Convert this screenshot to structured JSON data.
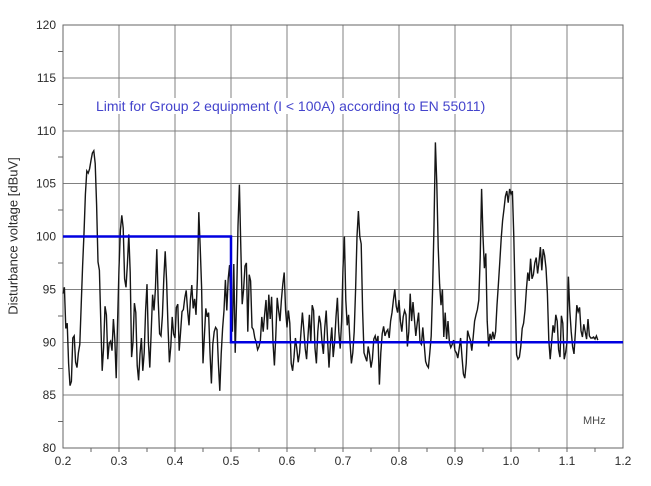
{
  "chart_data": {
    "type": "line",
    "title": "",
    "annotation": "Limit for Group 2 equipment (I < 100A) according to EN 55011)",
    "ylabel": "Disturbance voltage [dBuV]",
    "x_unit_label": "MHz",
    "xlim": [
      0.2,
      1.2
    ],
    "ylim": [
      80,
      120
    ],
    "x_ticks": [
      0.2,
      0.3,
      0.4,
      0.5,
      0.6,
      0.7,
      0.8,
      0.9,
      1.0,
      1.1,
      1.2
    ],
    "x_tick_labels": [
      "0.2",
      "0.3",
      "0.4",
      "0.5",
      "0.6",
      "0.7",
      "0.8",
      "0.9",
      "1.0",
      "1.1",
      "1.2"
    ],
    "y_ticks": [
      80,
      85,
      90,
      95,
      100,
      105,
      110,
      115,
      120
    ],
    "y_tick_labels": [
      "80",
      "85",
      "90",
      "95",
      "100",
      "105",
      "110",
      "115",
      "120"
    ],
    "x_minor_step": 0.05,
    "y_minor_step": 2.5,
    "grid": true,
    "legend_position": "none",
    "colors": {
      "grid": "#808080",
      "frame": "#666666",
      "tick": "#666666",
      "tick_label": "#2b2b2b",
      "trace": "#161616",
      "limit": "#0000e0",
      "annotation": "#4444cc",
      "background": "#ffffff"
    },
    "series": [
      {
        "name": "measured-disturbance-voltage",
        "style": "line",
        "color": "#161616",
        "x_start": 0.2,
        "x_step": 0.0025,
        "values": [
          94.6,
          95.2,
          91.3,
          91.8,
          88.0,
          85.9,
          86.3,
          90.4,
          90.6,
          88.1,
          87.6,
          89.0,
          89.8,
          93.5,
          97.2,
          100.3,
          104.0,
          106.2,
          106.0,
          106.4,
          107.2,
          107.9,
          108.1,
          106.9,
          103.0,
          97.6,
          96.8,
          91.9,
          87.3,
          89.5,
          93.4,
          92.6,
          88.4,
          89.9,
          90.1,
          89.2,
          92.2,
          90.3,
          86.6,
          92.0,
          97.0,
          100.6,
          102.0,
          100.8,
          96.0,
          95.2,
          97.4,
          100.2,
          96.6,
          88.6,
          90.0,
          93.7,
          92.8,
          87.8,
          86.4,
          88.9,
          90.4,
          87.3,
          89.0,
          93.0,
          95.5,
          90.0,
          87.6,
          91.0,
          94.5,
          93.0,
          95.0,
          98.8,
          94.0,
          90.8,
          90.6,
          92.5,
          96.0,
          98.6,
          95.8,
          91.5,
          88.1,
          89.6,
          92.4,
          90.8,
          90.4,
          93.3,
          93.6,
          89.2,
          91.0,
          92.9,
          93.1,
          94.2,
          94.9,
          93.0,
          91.6,
          94.0,
          95.4,
          93.2,
          94.1,
          92.6,
          96.0,
          102.3,
          99.0,
          95.2,
          88.0,
          90.6,
          93.2,
          92.4,
          92.8,
          89.0,
          86.1,
          89.8,
          91.0,
          91.4,
          91.2,
          88.0,
          85.4,
          88.9,
          91.3,
          93.0,
          95.9,
          93.0,
          96.0,
          97.3,
          93.0,
          91.0,
          97.4,
          89.0,
          94.0,
          101.0,
          104.9,
          99.0,
          93.6,
          95.0,
          97.2,
          97.5,
          91.0,
          96.4,
          95.8,
          91.4,
          91.2,
          90.4,
          90.0,
          89.3,
          89.6,
          90.2,
          92.4,
          91.0,
          92.6,
          94.0,
          91.2,
          94.5,
          92.2,
          94.3,
          90.0,
          87.8,
          90.6,
          94.2,
          93.0,
          92.0,
          94.0,
          95.5,
          96.6,
          93.0,
          91.4,
          93.0,
          91.8,
          88.0,
          87.3,
          88.6,
          90.4,
          89.4,
          88.1,
          89.0,
          91.0,
          92.8,
          91.2,
          89.4,
          88.4,
          90.6,
          92.6,
          90.0,
          93.5,
          93.0,
          89.4,
          88.0,
          91.0,
          92.5,
          91.8,
          90.0,
          88.9,
          91.4,
          93.0,
          90.2,
          87.6,
          89.9,
          91.4,
          88.6,
          90.0,
          92.4,
          94.2,
          91.0,
          89.4,
          92.0,
          97.0,
          100.0,
          94.0,
          91.6,
          92.6,
          90.0,
          88.0,
          89.0,
          91.0,
          95.0,
          100.0,
          102.4,
          100.0,
          99.3,
          93.0,
          89.0,
          88.6,
          88.2,
          89.6,
          88.8,
          87.6,
          88.4,
          90.3,
          90.6,
          89.9,
          90.6,
          86.0,
          89.0,
          90.8,
          91.5,
          90.6,
          91.0,
          91.2,
          90.4,
          92.0,
          92.8,
          94.0,
          95.0,
          93.4,
          92.8,
          94.0,
          92.0,
          91.0,
          92.4,
          93.0,
          92.6,
          89.6,
          91.0,
          94.6,
          92.0,
          93.8,
          92.2,
          90.6,
          91.8,
          92.8,
          90.0,
          89.8,
          91.4,
          89.8,
          88.2,
          87.8,
          87.6,
          89.0,
          90.6,
          95.0,
          101.0,
          108.9,
          105.0,
          99.0,
          95.5,
          93.5,
          95.0,
          90.5,
          92.8,
          90.3,
          92.0,
          90.0,
          89.5,
          89.8,
          90.2,
          89.2,
          89.0,
          88.5,
          89.4,
          90.4,
          88.6,
          87.0,
          86.6,
          88.0,
          91.1,
          90.6,
          90.2,
          89.2,
          90.5,
          92.0,
          92.6,
          93.1,
          94.0,
          98.0,
          104.5,
          100.0,
          97.0,
          98.4,
          92.0,
          89.6,
          90.8,
          90.2,
          91.0,
          90.3,
          91.0,
          93.5,
          95.5,
          97.6,
          99.8,
          101.5,
          102.6,
          103.8,
          104.3,
          103.2,
          104.5,
          104.0,
          104.3,
          100.0,
          94.0,
          88.8,
          88.4,
          88.6,
          89.6,
          91.3,
          91.8,
          93.0,
          95.0,
          96.6,
          95.8,
          97.9,
          96.0,
          96.4,
          97.5,
          98.0,
          96.5,
          97.6,
          99.0,
          96.8,
          98.8,
          98.2,
          97.0,
          94.6,
          90.2,
          88.4,
          90.0,
          91.6,
          90.9,
          92.6,
          92.0,
          89.3,
          88.6,
          92.5,
          91.8,
          88.4,
          89.0,
          90.0,
          96.2,
          93.0,
          91.0,
          89.6,
          88.9,
          91.0,
          93.5,
          92.9,
          93.3,
          91.1,
          90.5,
          91.7,
          91.0,
          90.3,
          92.2,
          90.6,
          90.4,
          90.4,
          90.5,
          90.3,
          90.6,
          90.2
        ]
      },
      {
        "name": "limit-line",
        "style": "step-line",
        "color": "#0000e0",
        "points": [
          [
            0.2,
            100
          ],
          [
            0.5,
            100
          ],
          [
            0.5,
            90
          ],
          [
            1.2,
            90
          ]
        ]
      }
    ]
  }
}
